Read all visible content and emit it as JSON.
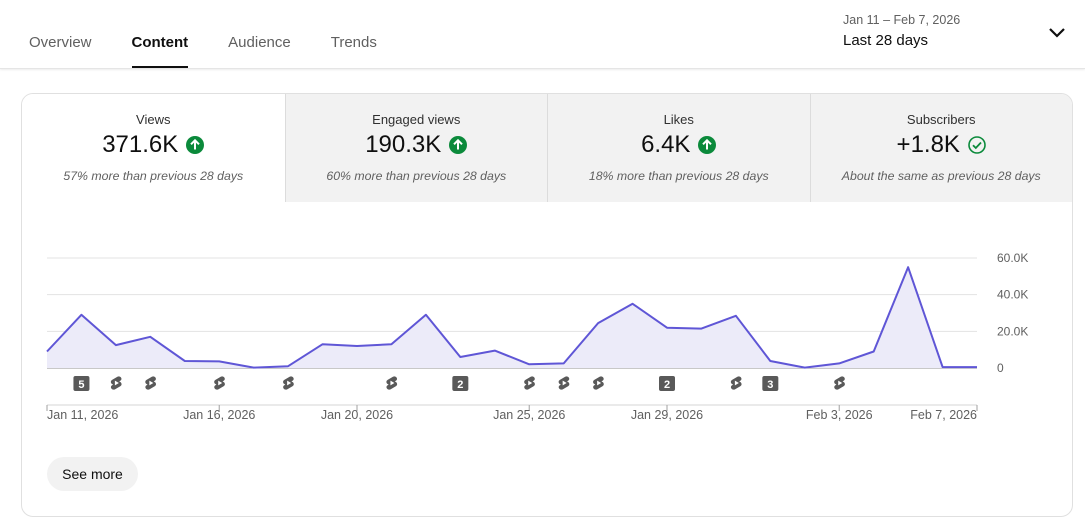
{
  "tabs": [
    {
      "label": "Overview",
      "active": false
    },
    {
      "label": "Content",
      "active": true
    },
    {
      "label": "Audience",
      "active": false
    },
    {
      "label": "Trends",
      "active": false
    }
  ],
  "date_picker": {
    "range": "Jan 11 – Feb 7, 2026",
    "preset": "Last 28 days",
    "icon": "chevron-down-icon"
  },
  "metrics": [
    {
      "label": "Views",
      "value": "371.6K",
      "trend": "up",
      "icon": "arrow-up-circle-icon",
      "compare": "57% more than previous 28 days"
    },
    {
      "label": "Engaged views",
      "value": "190.3K",
      "trend": "up",
      "icon": "arrow-up-circle-icon",
      "compare": "60% more than previous 28 days"
    },
    {
      "label": "Likes",
      "value": "6.4K",
      "trend": "up",
      "icon": "arrow-up-circle-icon",
      "compare": "18% more than previous 28 days"
    },
    {
      "label": "Subscribers",
      "value": "+1.8K",
      "trend": "same",
      "icon": "check-circle-icon",
      "compare": "About the same as previous 28 days"
    }
  ],
  "colors": {
    "line": "#5f56d6",
    "area": "#ecebf9",
    "trend_up": "#0b8a3b",
    "marker": "#595959"
  },
  "chart_data": {
    "type": "area",
    "x": [
      "Jan 11",
      "Jan 12",
      "Jan 13",
      "Jan 14",
      "Jan 15",
      "Jan 16",
      "Jan 17",
      "Jan 18",
      "Jan 19",
      "Jan 20",
      "Jan 21",
      "Jan 22",
      "Jan 23",
      "Jan 24",
      "Jan 25",
      "Jan 26",
      "Jan 27",
      "Jan 28",
      "Jan 29",
      "Jan 30",
      "Jan 31",
      "Feb 1",
      "Feb 2",
      "Feb 3",
      "Feb 4",
      "Feb 5",
      "Feb 6",
      "Feb 7"
    ],
    "series": [
      {
        "values": [
          9000,
          29000,
          12500,
          17000,
          3800,
          3600,
          200,
          1000,
          13000,
          12000,
          13000,
          29000,
          6000,
          9500,
          2000,
          2500,
          24500,
          35000,
          22000,
          21500,
          28500,
          3800,
          200,
          2500,
          9000,
          55000,
          500,
          500
        ]
      }
    ],
    "x_tick_labels": [
      "Jan 11, 2026",
      "Jan 16, 2026",
      "Jan 20, 2026",
      "Jan 25, 2026",
      "Jan 29, 2026",
      "Feb 3, 2026",
      "Feb 7, 2026"
    ],
    "x_tick_index": [
      0,
      5,
      9,
      14,
      18,
      23,
      27
    ],
    "y_ticks": [
      0,
      20000,
      40000,
      60000
    ],
    "y_tick_labels": [
      "0",
      "20.0K",
      "40.0K",
      "60.0K"
    ],
    "ylim": [
      0,
      60000
    ],
    "grid": true,
    "y_axis_side": "right",
    "upload_markers": [
      {
        "day_index": 1,
        "kind": "count",
        "label": "5"
      },
      {
        "day_index": 2,
        "kind": "shorts"
      },
      {
        "day_index": 3,
        "kind": "shorts"
      },
      {
        "day_index": 5,
        "kind": "shorts"
      },
      {
        "day_index": 7,
        "kind": "shorts"
      },
      {
        "day_index": 10,
        "kind": "shorts"
      },
      {
        "day_index": 12,
        "kind": "count",
        "label": "2"
      },
      {
        "day_index": 14,
        "kind": "shorts"
      },
      {
        "day_index": 15,
        "kind": "shorts"
      },
      {
        "day_index": 16,
        "kind": "shorts"
      },
      {
        "day_index": 18,
        "kind": "count",
        "label": "2"
      },
      {
        "day_index": 20,
        "kind": "shorts"
      },
      {
        "day_index": 21,
        "kind": "count",
        "label": "3"
      },
      {
        "day_index": 23,
        "kind": "shorts"
      }
    ]
  },
  "see_more_label": "See more"
}
